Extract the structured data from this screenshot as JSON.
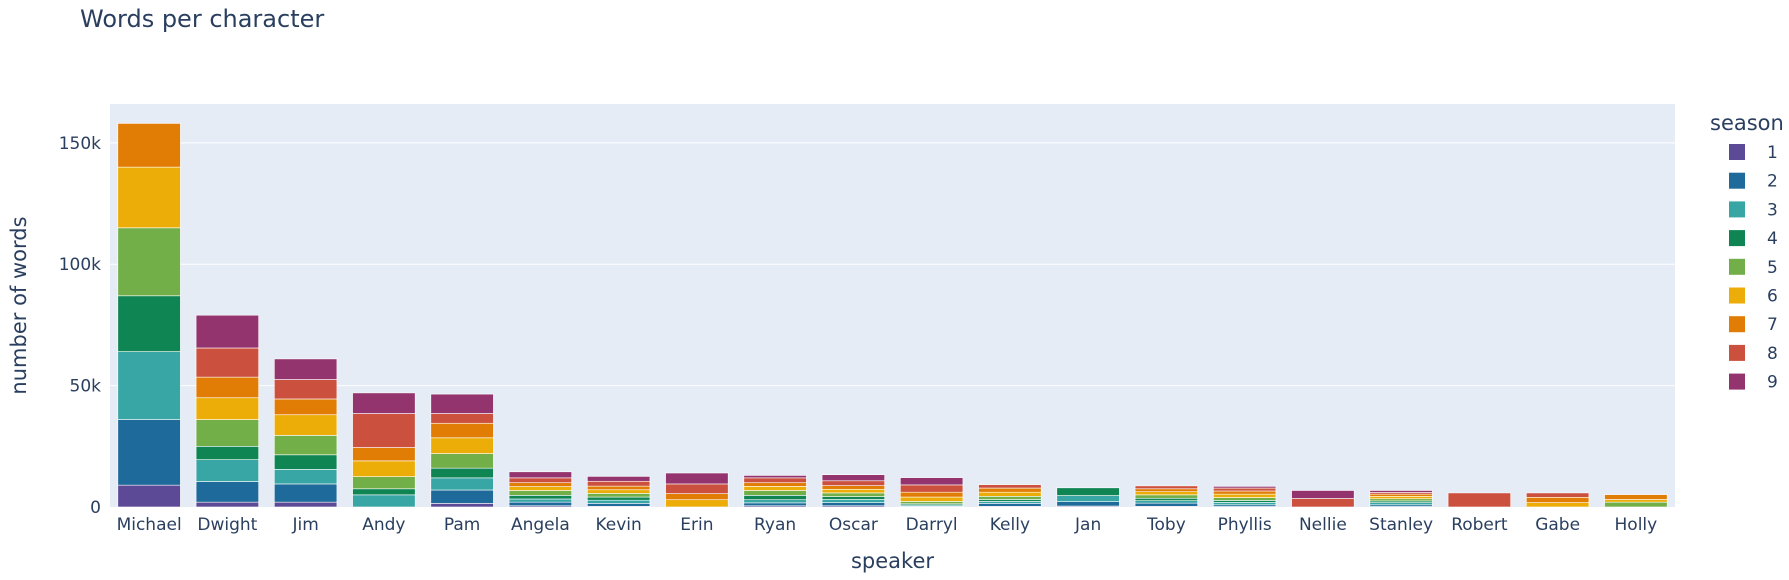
{
  "chart_data": {
    "type": "bar",
    "barmode": "stack",
    "title": "Words per character",
    "xlabel": "speaker",
    "ylabel": "number of words",
    "ylim": [
      0,
      166000
    ],
    "yticks": [
      0,
      50000,
      100000,
      150000
    ],
    "ytick_labels": [
      "0",
      "50k",
      "100k",
      "150k"
    ],
    "grid": true,
    "legend_title": "season",
    "legend_position": "right",
    "categories": [
      "Michael",
      "Dwight",
      "Jim",
      "Andy",
      "Pam",
      "Angela",
      "Kevin",
      "Erin",
      "Ryan",
      "Oscar",
      "Darryl",
      "Kelly",
      "Jan",
      "Toby",
      "Phyllis",
      "Nellie",
      "Stanley",
      "Robert",
      "Gabe",
      "Holly"
    ],
    "series": [
      {
        "name": "1",
        "color": "#5d4a96",
        "values": [
          9000,
          2000,
          2000,
          0,
          1500,
          500,
          300,
          0,
          500,
          500,
          0,
          300,
          400,
          300,
          200,
          0,
          200,
          0,
          0,
          0
        ]
      },
      {
        "name": "2",
        "color": "#1e6a9b",
        "values": [
          27000,
          8500,
          7500,
          0,
          5500,
          1500,
          1200,
          0,
          1200,
          1300,
          300,
          1200,
          1800,
          1300,
          700,
          0,
          700,
          0,
          0,
          0
        ]
      },
      {
        "name": "3",
        "color": "#38a6a5",
        "values": [
          28000,
          9000,
          6000,
          5000,
          5000,
          1300,
          1300,
          0,
          1300,
          1300,
          500,
          800,
          2500,
          1000,
          1000,
          0,
          900,
          0,
          0,
          0
        ]
      },
      {
        "name": "4",
        "color": "#0f8554",
        "values": [
          23000,
          5500,
          6000,
          2500,
          4000,
          1500,
          1300,
          0,
          1800,
          1200,
          500,
          800,
          3200,
          1000,
          800,
          0,
          700,
          0,
          0,
          0
        ]
      },
      {
        "name": "5",
        "color": "#73af48",
        "values": [
          28000,
          11000,
          8000,
          5000,
          6000,
          2000,
          1500,
          0,
          2000,
          1500,
          1000,
          1300,
          0,
          1400,
          1200,
          0,
          900,
          0,
          0,
          2000
        ]
      },
      {
        "name": "6",
        "color": "#edad08",
        "values": [
          25000,
          9000,
          8500,
          6500,
          6500,
          1600,
          1500,
          3000,
          1700,
          1500,
          1800,
          1700,
          0,
          1300,
          1400,
          0,
          1000,
          0,
          1800,
          1100
        ]
      },
      {
        "name": "7",
        "color": "#e17c05",
        "values": [
          18000,
          8500,
          6500,
          5500,
          6000,
          1600,
          1500,
          2500,
          1500,
          1500,
          2000,
          1700,
          0,
          1200,
          1300,
          0,
          900,
          0,
          2200,
          2000
        ]
      },
      {
        "name": "8",
        "color": "#cc503e",
        "values": [
          0,
          12000,
          8000,
          14000,
          4000,
          2000,
          2000,
          4000,
          2000,
          2000,
          3000,
          1400,
          0,
          1200,
          1200,
          3500,
          700,
          5800,
          1800,
          0
        ]
      },
      {
        "name": "9",
        "color": "#94346e",
        "values": [
          0,
          13500,
          8500,
          8500,
          8000,
          2500,
          2000,
          4500,
          1000,
          2500,
          3000,
          0,
          0,
          0,
          700,
          3300,
          800,
          0,
          0,
          0
        ]
      }
    ]
  }
}
